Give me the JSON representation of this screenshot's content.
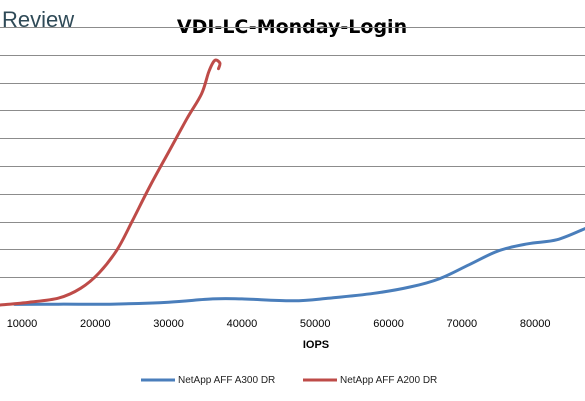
{
  "brand": {
    "text": "Review"
  },
  "chart_data": {
    "type": "line",
    "title": "VDI-LC-Monday-Login",
    "xlabel": "IOPS",
    "ylabel": "",
    "xlim": [
      7000,
      86800
    ],
    "ylim": [
      0,
      10
    ],
    "grid": true,
    "legend_placement": "bottom",
    "x_ticks": [
      10000,
      20000,
      30000,
      40000,
      50000,
      60000,
      70000,
      80000
    ],
    "y_gridlines": [
      1,
      2,
      3,
      4,
      5,
      6,
      7,
      8,
      9,
      10
    ],
    "series": [
      {
        "name": "NetApp AFF A300 DR",
        "color": "#4a7ebb",
        "points": [
          [
            9000,
            0.02
          ],
          [
            15000,
            0.03
          ],
          [
            22000,
            0.03
          ],
          [
            30000,
            0.1
          ],
          [
            36000,
            0.22
          ],
          [
            40000,
            0.22
          ],
          [
            47000,
            0.15
          ],
          [
            52000,
            0.25
          ],
          [
            58000,
            0.42
          ],
          [
            63000,
            0.65
          ],
          [
            67000,
            0.95
          ],
          [
            71000,
            1.45
          ],
          [
            75000,
            1.95
          ],
          [
            79000,
            2.2
          ],
          [
            83000,
            2.35
          ],
          [
            86800,
            2.75
          ]
        ]
      },
      {
        "name": "NetApp AFF A200 DR",
        "color": "#be4b48",
        "points": [
          [
            7000,
            0.0
          ],
          [
            11000,
            0.1
          ],
          [
            15000,
            0.25
          ],
          [
            18000,
            0.6
          ],
          [
            20500,
            1.15
          ],
          [
            23000,
            2.0
          ],
          [
            25000,
            3.0
          ],
          [
            27500,
            4.3
          ],
          [
            30000,
            5.5
          ],
          [
            32500,
            6.7
          ],
          [
            34500,
            7.6
          ],
          [
            35500,
            8.4
          ],
          [
            36300,
            8.8
          ],
          [
            37000,
            8.7
          ],
          [
            36800,
            8.5
          ]
        ]
      }
    ]
  }
}
